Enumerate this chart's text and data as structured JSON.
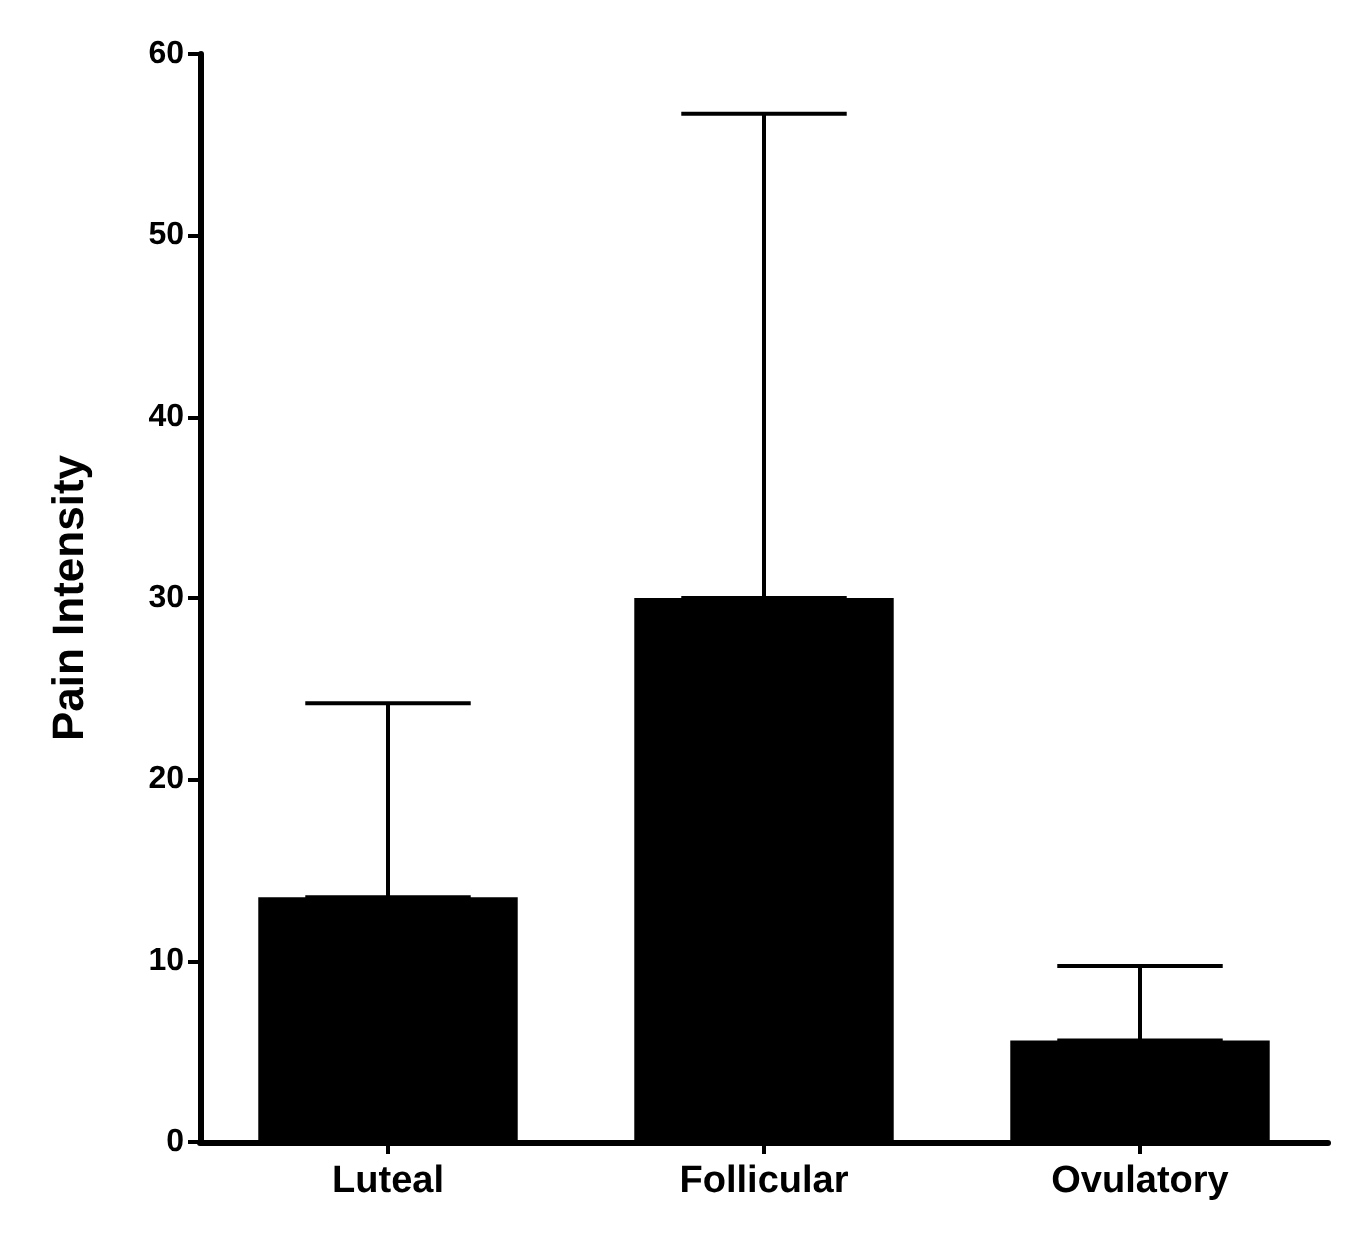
{
  "chart_data": {
    "type": "bar",
    "ylabel": "Pain Intensity",
    "categories": [
      "Luteal",
      "Follicular",
      "Ovulatory"
    ],
    "values": [
      13.5,
      30,
      5.6
    ],
    "color": "#000000",
    "errors": [
      [
        13.5,
        24.2
      ],
      [
        30,
        56.7
      ],
      [
        5.6,
        9.7
      ]
    ],
    "ylim": [
      0,
      60
    ],
    "yticks": [
      0,
      10,
      20,
      30,
      40,
      50,
      60
    ],
    "grid": false
  }
}
